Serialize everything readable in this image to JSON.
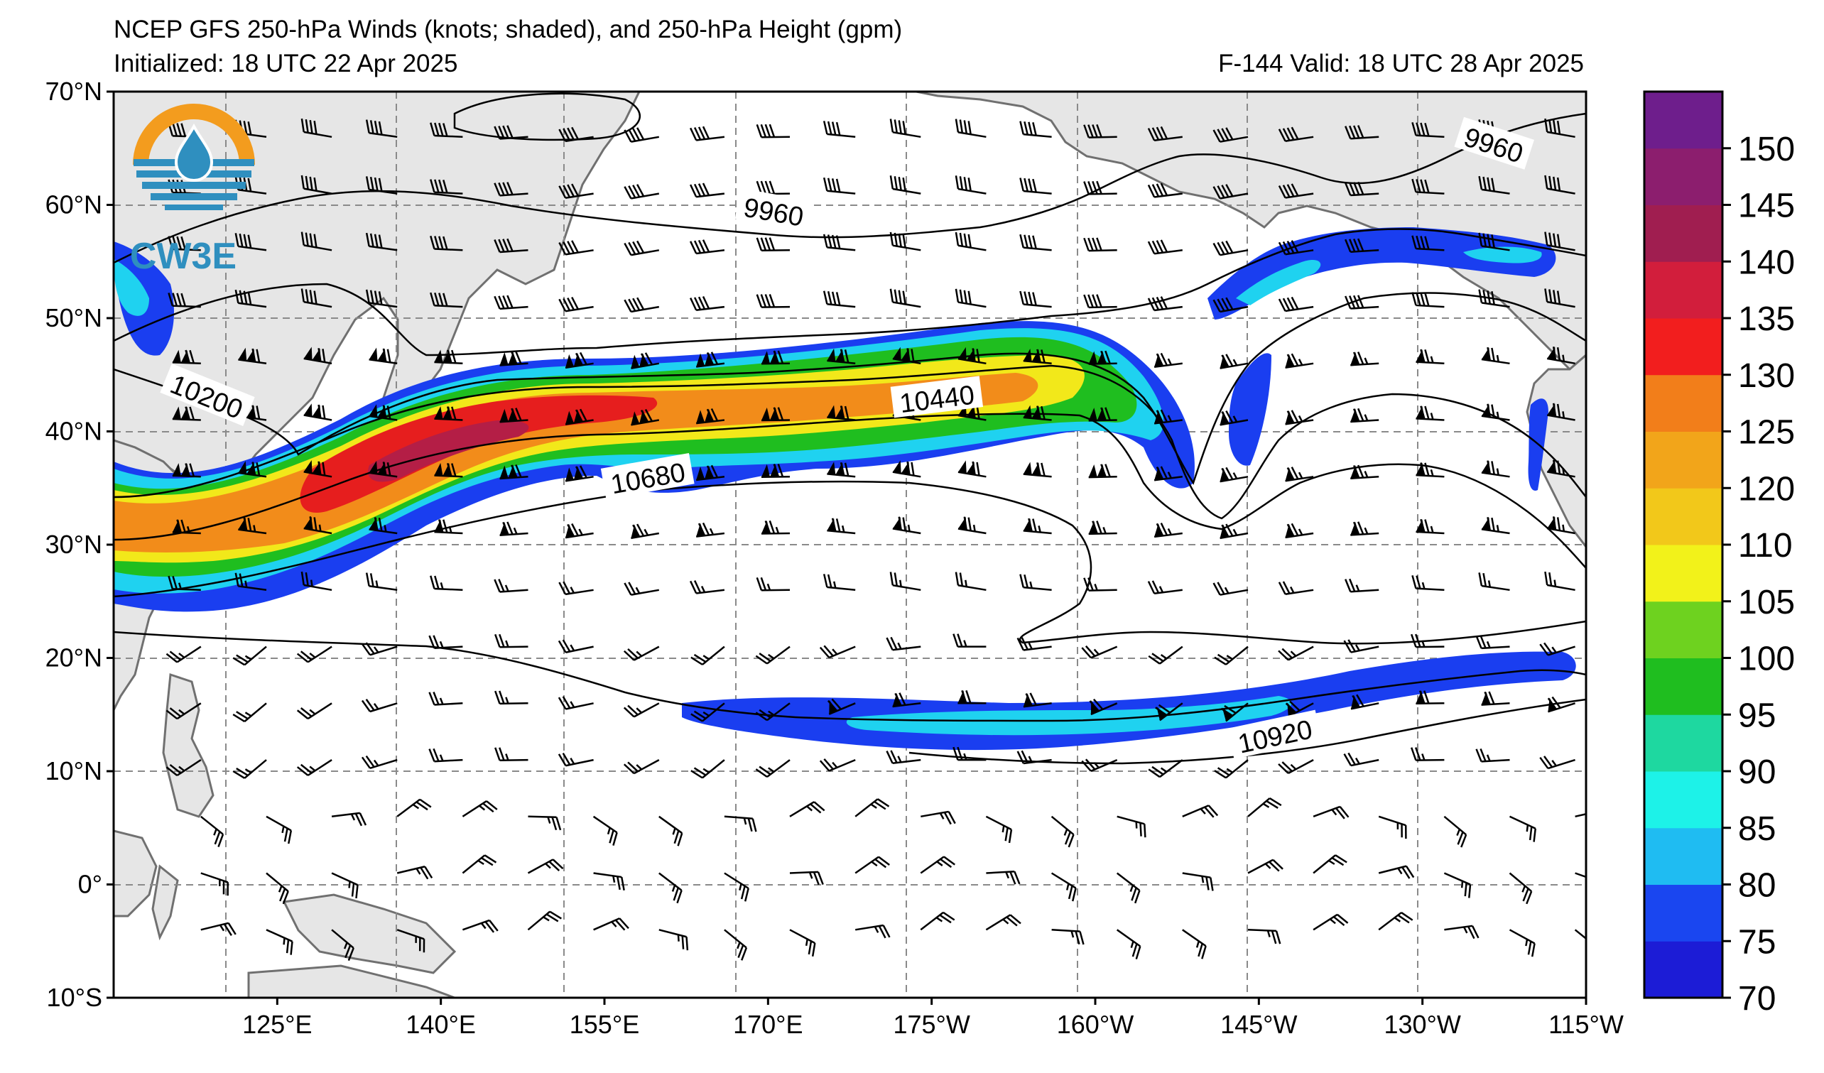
{
  "header": {
    "title_line1": "NCEP GFS 250-hPa Winds (knots; shaded), and 250-hPa Height (gpm)",
    "title_line2": "Initialized: 18 UTC 22 Apr 2025",
    "title_right": "F-144  Valid: 18 UTC 28 Apr 2025"
  },
  "logo": {
    "text": "CW3E",
    "icon": "cw3e-water-drop-logo"
  },
  "map": {
    "projection": "cylindrical",
    "lon_range_deg_east": [
      110,
      245
    ],
    "lat_range_deg": [
      -10,
      70
    ],
    "lat_ticks": [
      {
        "value": 70,
        "label": "70°N"
      },
      {
        "value": 60,
        "label": "60°N"
      },
      {
        "value": 50,
        "label": "50°N"
      },
      {
        "value": 40,
        "label": "40°N"
      },
      {
        "value": 30,
        "label": "30°N"
      },
      {
        "value": 20,
        "label": "20°N"
      },
      {
        "value": 10,
        "label": "10°N"
      },
      {
        "value": 0,
        "label": "0°"
      },
      {
        "value": -10,
        "label": "10°S"
      }
    ],
    "lon_ticks": [
      {
        "value": 125,
        "label": "125°E"
      },
      {
        "value": 140,
        "label": "140°E"
      },
      {
        "value": 155,
        "label": "155°E"
      },
      {
        "value": 170,
        "label": "170°E"
      },
      {
        "value": 185,
        "label": "175°W"
      },
      {
        "value": 200,
        "label": "160°W"
      },
      {
        "value": 215,
        "label": "145°W"
      },
      {
        "value": 230,
        "label": "130°W"
      },
      {
        "value": 245,
        "label": "115°W"
      }
    ],
    "gridlines": true,
    "land_color": "#e6e6e6",
    "coast_color": "#707070"
  },
  "height_contour_labels": [
    {
      "text": "9960",
      "lon": 170.5,
      "lat": 59.3,
      "angle": 10
    },
    {
      "text": "9960",
      "lon": 236.5,
      "lat": 65.2,
      "angle": 18
    },
    {
      "text": "10200",
      "lon": 118.5,
      "lat": 43.0,
      "angle": 22
    },
    {
      "text": "10440",
      "lon": 185.5,
      "lat": 42.8,
      "angle": -7
    },
    {
      "text": "10680",
      "lon": 159.0,
      "lat": 35.8,
      "angle": -10
    },
    {
      "text": "10920",
      "lon": 216.5,
      "lat": 13.0,
      "angle": -12
    }
  ],
  "colorbar": {
    "levels": [
      70,
      75,
      80,
      85,
      90,
      95,
      100,
      105,
      110,
      120,
      125,
      130,
      135,
      140,
      145,
      150,
      155
    ],
    "tick_labels": [
      "70",
      "75",
      "80",
      "85",
      "90",
      "95",
      "100",
      "105",
      "110",
      "120",
      "125",
      "130",
      "135",
      "140",
      "145",
      "150"
    ],
    "colors": [
      "#1c1cd6",
      "#1a46f0",
      "#1fbcf2",
      "#1df2e8",
      "#1ed8a0",
      "#1fbe1f",
      "#6ed21f",
      "#f2f21a",
      "#f2c81a",
      "#f2a51a",
      "#f27e1a",
      "#f21e1e",
      "#d21e3c",
      "#a01e50",
      "#8c1e6e",
      "#6e1e8c"
    ]
  },
  "colors": {
    "jet_blue": "#1a3ef0",
    "jet_cyan": "#1fd2f0",
    "jet_green": "#1fbe1f",
    "jet_yellow": "#f2e81a",
    "jet_orange": "#f28c1a",
    "jet_red": "#e61e1e",
    "jet_crimson": "#b41e46"
  }
}
